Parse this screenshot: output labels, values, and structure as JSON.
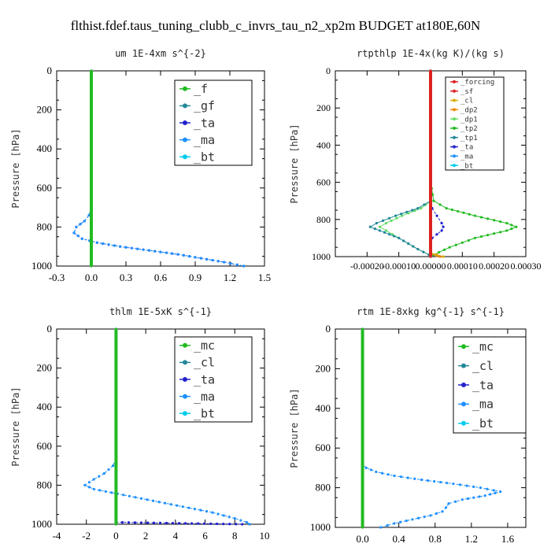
{
  "suptitle": "flthist.fdef.taus_tuning_clubb_c_invrs_tau_n2_xp2m  BUDGET at180E,60N",
  "colors": {
    "green": "#22bb22",
    "light_green": "#66dd66",
    "dark_green": "#118833",
    "teal": "#228899",
    "blue": "#2222cc",
    "dodger_blue": "#1e90ff",
    "cyan": "#00ccee",
    "red": "#dd2222",
    "orange": "#ee8800",
    "gold": "#ddaa00"
  },
  "chart_data": [
    {
      "type": "line",
      "title": "um  1E-4xm s^{-2}",
      "ylabel": "Pressure [hPa]",
      "xlim": [
        -0.3,
        1.5
      ],
      "ylim": [
        1000,
        0
      ],
      "xticks": [
        "-0.3",
        "0.0",
        "0.3",
        "0.6",
        "0.9",
        "1.2",
        "1.5"
      ],
      "yticks": [
        "0",
        "200",
        "400",
        "600",
        "800",
        "1000"
      ],
      "legend": [
        "_f",
        "_gf",
        "_ta",
        "_ma",
        "_bt"
      ],
      "series": [
        {
          "name": "_ta",
          "color": "blue",
          "y": [
            0,
            700,
            740,
            770,
            800,
            830,
            860,
            880,
            900,
            920,
            940,
            960,
            980,
            1000
          ],
          "x": [
            0,
            0,
            -0.02,
            -0.06,
            -0.13,
            -0.15,
            -0.08,
            0.05,
            0.25,
            0.5,
            0.75,
            0.95,
            1.15,
            1.32
          ]
        },
        {
          "name": "_ma",
          "color": "dodger_blue",
          "y": [
            0,
            700,
            740,
            770,
            800,
            830,
            860,
            880,
            900,
            920,
            940,
            960,
            980,
            1000
          ],
          "x": [
            0,
            0,
            -0.02,
            -0.06,
            -0.13,
            -0.15,
            -0.08,
            0.05,
            0.25,
            0.5,
            0.75,
            0.95,
            1.15,
            1.32
          ]
        },
        {
          "name": "_gf",
          "color": "teal",
          "y": [
            0,
            1000
          ],
          "x": [
            0,
            0
          ]
        },
        {
          "name": "_f",
          "color": "green",
          "y": [
            0,
            1000
          ],
          "x": [
            0,
            0
          ]
        }
      ]
    },
    {
      "type": "line",
      "title": "rtpthlp  1E-4x(kg K)/(kg s)",
      "ylabel": "Pressure [hPa]",
      "xlim": [
        -0.0003,
        0.0003
      ],
      "ylim": [
        1000,
        0
      ],
      "xticks": [
        "-0.00020",
        "-0.00010",
        "0.00000",
        "0.00010",
        "0.00020",
        "0.00030"
      ],
      "yticks": [
        "0",
        "200",
        "400",
        "600",
        "800",
        "1000"
      ],
      "legend": [
        "_forcing",
        "_sf",
        "_cl",
        "_dp2",
        "_dp1",
        "_tp2",
        "_tp1",
        "_ta",
        "_ma",
        "_bt"
      ],
      "series": [
        {
          "name": "_tp2",
          "color": "green",
          "y": [
            0,
            600,
            700,
            740,
            780,
            820,
            840,
            860,
            900,
            950,
            990,
            1000
          ],
          "x": [
            0,
            0,
            1e-05,
            5e-05,
            0.00014,
            0.00024,
            0.00027,
            0.00024,
            0.00014,
            6e-05,
            1e-05,
            0
          ]
        },
        {
          "name": "_dp1",
          "color": "light_green",
          "y": [
            0,
            700,
            740,
            780,
            820,
            840,
            860,
            880,
            900,
            930,
            960,
            990,
            1000
          ],
          "x": [
            0,
            0,
            -3e-05,
            -9e-05,
            -0.00014,
            -0.00016,
            -0.00014,
            -0.00012,
            -0.0001,
            -7e-05,
            -4e-05,
            -5e-06,
            0
          ]
        },
        {
          "name": "_tp1",
          "color": "teal",
          "y": [
            0,
            700,
            740,
            780,
            820,
            840,
            860,
            880,
            900,
            930,
            960,
            990,
            1000
          ],
          "x": [
            0,
            0,
            -4e-05,
            -0.00011,
            -0.00017,
            -0.00019,
            -0.00016,
            -0.00013,
            -0.0001,
            -7e-05,
            -4e-05,
            -5e-06,
            0
          ]
        },
        {
          "name": "_ta",
          "color": "blue",
          "y": [
            0,
            700,
            740,
            780,
            820,
            840,
            860,
            880,
            900,
            930,
            960,
            1000
          ],
          "x": [
            0,
            0,
            5e-06,
            2e-05,
            3.5e-05,
            4e-05,
            3.5e-05,
            2e-05,
            5e-06,
            0,
            0,
            0
          ]
        },
        {
          "name": "_cl",
          "color": "gold",
          "y": [
            980,
            990,
            1000
          ],
          "x": [
            0,
            2e-05,
            4e-05
          ]
        },
        {
          "name": "_dp2",
          "color": "orange",
          "y": [
            985,
            995,
            1000
          ],
          "x": [
            0,
            2e-05,
            3e-05
          ]
        },
        {
          "name": "_forcing",
          "color": "red",
          "y": [
            0,
            1000
          ],
          "x": [
            0,
            0
          ]
        }
      ]
    },
    {
      "type": "line",
      "title": "thlm  1E-5xK s^{-1}",
      "ylabel": "Pressure [hPa]",
      "xlim": [
        -4,
        10
      ],
      "ylim": [
        1000,
        0
      ],
      "xticks": [
        "-4",
        "-2",
        "0",
        "2",
        "4",
        "6",
        "8",
        "10"
      ],
      "yticks": [
        "0",
        "200",
        "400",
        "600",
        "800",
        "1000"
      ],
      "legend": [
        "_mc",
        "_cl",
        "_ta",
        "_ma",
        "_bt"
      ],
      "series": [
        {
          "name": "_cl",
          "color": "dodger_blue",
          "y": [
            0,
            660,
            700,
            740,
            770,
            800,
            820,
            850,
            880,
            910,
            940,
            970,
            990,
            1000
          ],
          "x": [
            0,
            0,
            -0.2,
            -0.8,
            -1.5,
            -2.1,
            -1.5,
            0.5,
            2.5,
            4.5,
            6.5,
            8.0,
            8.8,
            9.0
          ]
        },
        {
          "name": "_ta",
          "color": "blue",
          "y": [
            990,
            1000
          ],
          "x": [
            0,
            8.5
          ]
        },
        {
          "name": "_mc",
          "color": "green",
          "y": [
            0,
            1000
          ],
          "x": [
            0,
            0
          ]
        }
      ]
    },
    {
      "type": "line",
      "title": "rtm  1E-8xkg kg^{-1} s^{-1}",
      "ylabel": "Pressure [hPa]",
      "xlim": [
        -0.3,
        1.8
      ],
      "ylim": [
        1000,
        0
      ],
      "xticks": [
        "0.0",
        "0.4",
        "0.8",
        "1.2",
        "1.6"
      ],
      "yticks": [
        "0",
        "200",
        "400",
        "600",
        "800",
        "1000"
      ],
      "legend": [
        "_mc",
        "_cl",
        "_ta",
        "_ma",
        "_bt"
      ],
      "series": [
        {
          "name": "_cl",
          "color": "dodger_blue",
          "y": [
            0,
            680,
            700,
            720,
            740,
            760,
            780,
            800,
            820,
            840,
            860,
            880,
            900,
            920,
            940,
            960,
            980,
            1000
          ],
          "x": [
            0,
            0,
            0.04,
            0.15,
            0.35,
            0.65,
            1.0,
            1.3,
            1.52,
            1.35,
            1.1,
            0.95,
            0.92,
            0.88,
            0.75,
            0.55,
            0.35,
            0.2
          ]
        },
        {
          "name": "_mc",
          "color": "green",
          "y": [
            0,
            1000
          ],
          "x": [
            0,
            0
          ]
        }
      ]
    }
  ]
}
